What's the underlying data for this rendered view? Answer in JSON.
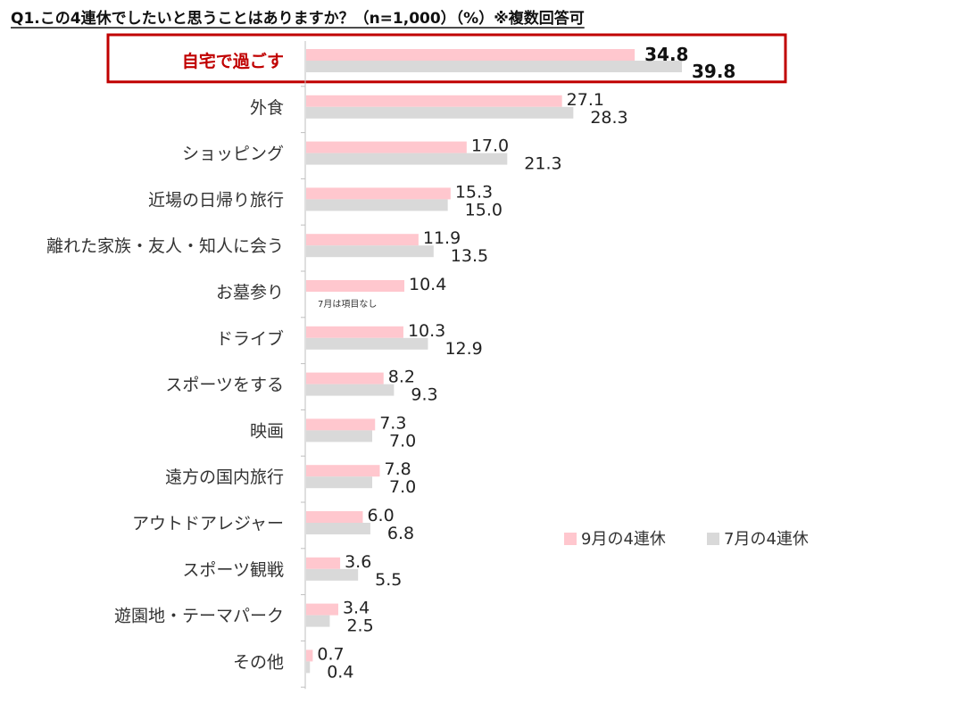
{
  "chart_data": {
    "type": "bar",
    "orientation": "horizontal",
    "title": "Q1.この4連休でしたいと思うことはありますか？（n=1,000）（%）※複数回答可",
    "categories": [
      "自宅で過ごす",
      "外食",
      "ショッピング",
      "近場の日帰り旅行",
      "離れた家族・友人・知人に会う",
      "お墓参り",
      "ドライブ",
      "スポーツをする",
      "映画",
      "遠方の国内旅行",
      "アウトドアレジャー",
      "スポーツ観戦",
      "遊園地・テーマパーク",
      "その他"
    ],
    "series": [
      {
        "name": "9月の4連休",
        "color": "#ffc7ce",
        "values": [
          34.8,
          27.1,
          17.0,
          15.3,
          11.9,
          10.4,
          10.3,
          8.2,
          7.3,
          7.8,
          6.0,
          3.6,
          3.4,
          0.7
        ],
        "labels": [
          "34.8",
          "27.1",
          "17.0",
          "15.3",
          "11.9",
          "10.4",
          "10.3",
          "8.2",
          "7.3",
          "7.8",
          "6.0",
          "3.6",
          "3.4",
          "0.7"
        ]
      },
      {
        "name": "7月の4連休",
        "color": "#d9d9d9",
        "values": [
          39.8,
          28.3,
          21.3,
          15.0,
          13.5,
          null,
          12.9,
          9.3,
          7.0,
          7.0,
          6.8,
          5.5,
          2.5,
          0.4
        ],
        "labels": [
          "39.8",
          "28.3",
          "21.3",
          "15.0",
          "13.5",
          null,
          "12.9",
          "9.3",
          "7.0",
          "7.0",
          "6.8",
          "5.5",
          "2.5",
          "0.4"
        ]
      }
    ],
    "annotations": [
      {
        "category_index": 5,
        "text": "7月は項目なし"
      }
    ],
    "highlight": {
      "category_index": 0,
      "border_color": "#c00000",
      "label_color": "#c00000"
    },
    "xlim": [
      0,
      40
    ],
    "grid": false,
    "legend_position": "right"
  }
}
